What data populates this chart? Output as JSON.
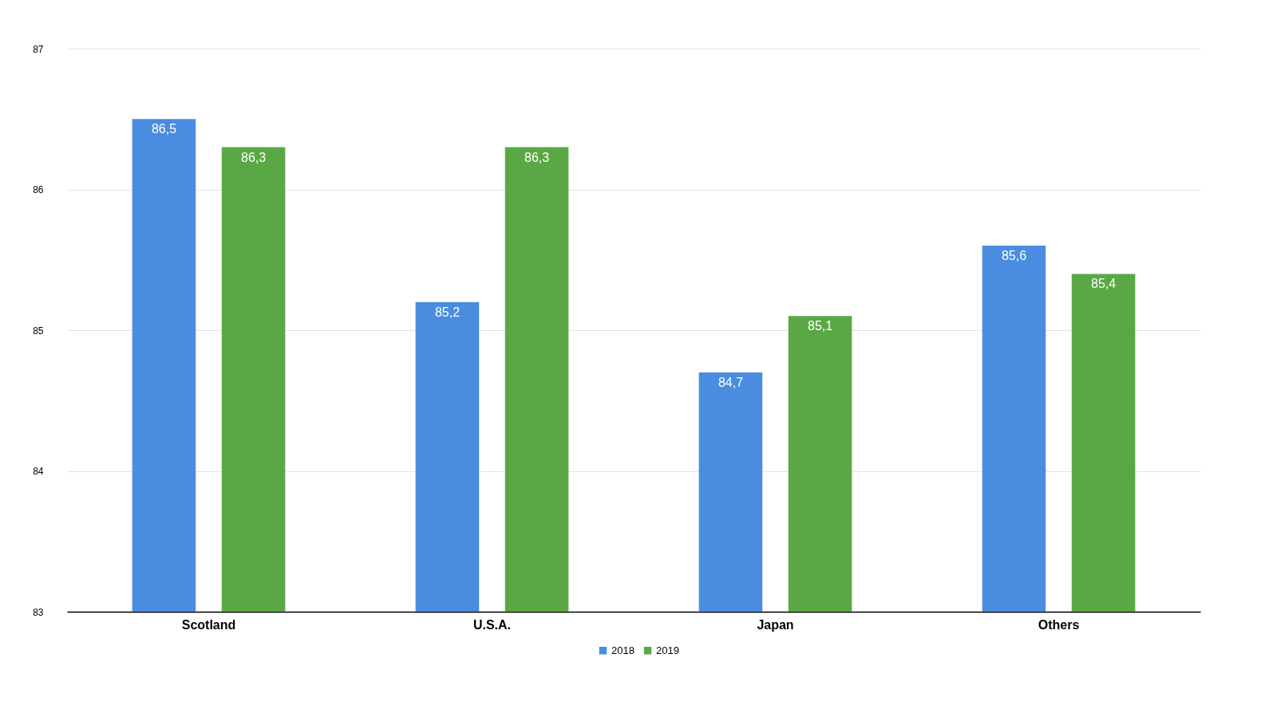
{
  "chart_data": {
    "type": "bar",
    "categories": [
      "Scotland",
      "U.S.A.",
      "Japan",
      "Others"
    ],
    "series": [
      {
        "name": "2018",
        "color": "#4a8de0",
        "values": [
          86.5,
          85.2,
          84.7,
          85.6
        ],
        "value_labels": [
          "86,5",
          "85,2",
          "84,7",
          "85,6"
        ]
      },
      {
        "name": "2019",
        "color": "#5aa845",
        "values": [
          86.3,
          86.3,
          85.1,
          85.4
        ],
        "value_labels": [
          "86,3",
          "86,3",
          "85,1",
          "85,4"
        ]
      }
    ],
    "ylim": [
      83,
      87
    ],
    "yticks": [
      83,
      84,
      85,
      86,
      87
    ],
    "grid": "y",
    "legend": "bottom"
  }
}
